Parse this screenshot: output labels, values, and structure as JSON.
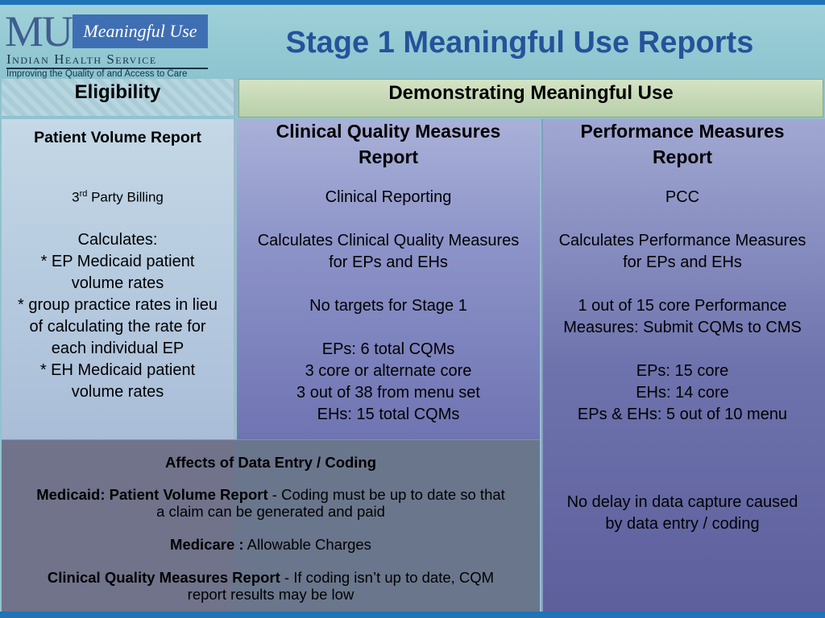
{
  "logo": {
    "mu": "MU",
    "badge": "Meaningful Use",
    "org": "Indian Health Service",
    "tagline": "Improving the Quality of and Access to Care"
  },
  "title": "Stage 1 Meaningful Use Reports",
  "headers": {
    "eligibility": "Eligibility",
    "demonstrating": "Demonstrating Meaningful Use"
  },
  "eligibility": {
    "heading": "Patient Volume Report",
    "source_prefix": "3",
    "source_sup": "rd",
    "source_suffix": " Party Billing",
    "calculates": "Calculates:",
    "items": [
      "* EP Medicaid patient",
      "volume rates",
      "* group practice rates in lieu",
      "of calculating the rate for",
      "each individual EP",
      "* EH Medicaid patient",
      "volume rates"
    ]
  },
  "cqm": {
    "heading_1": "Clinical Quality Measures",
    "heading_2": "Report",
    "source": "Clinical Reporting",
    "calc_1": "Calculates Clinical Quality Measures",
    "calc_2": "for EPs and EHs",
    "targets": "No targets for Stage 1",
    "details": [
      "EPs: 6 total CQMs",
      "3 core or alternate core",
      "3 out of 38 from menu set",
      "EHs: 15 total CQMs"
    ]
  },
  "pm": {
    "heading_1": "Performance Measures",
    "heading_2": "Report",
    "source": "PCC",
    "calc_1": "Calculates Performance Measures",
    "calc_2": "for EPs and EHs",
    "core_1": "1 out of 15 core Performance",
    "core_2": "Measures: Submit CQMs to CMS",
    "details": [
      "EPs: 15 core",
      "EHs: 14 core",
      "EPs & EHs: 5 out of 10 menu"
    ],
    "note_1": "No delay in data capture caused",
    "note_2": "by data entry / coding"
  },
  "affects": {
    "heading": "Affects of Data Entry / Coding",
    "medicaid_label": "Medicaid: Patient Volume Report",
    "medicaid_text": " - Coding must be up to date so that",
    "medicaid_text_2": "a claim can be generated and paid",
    "medicare_label": "Medicare :",
    "medicare_text": " Allowable Charges",
    "cqm_label": "Clinical Quality Measures Report",
    "cqm_text": " - If coding isn’t up to date, CQM",
    "cqm_text_2": "report results may be low"
  }
}
